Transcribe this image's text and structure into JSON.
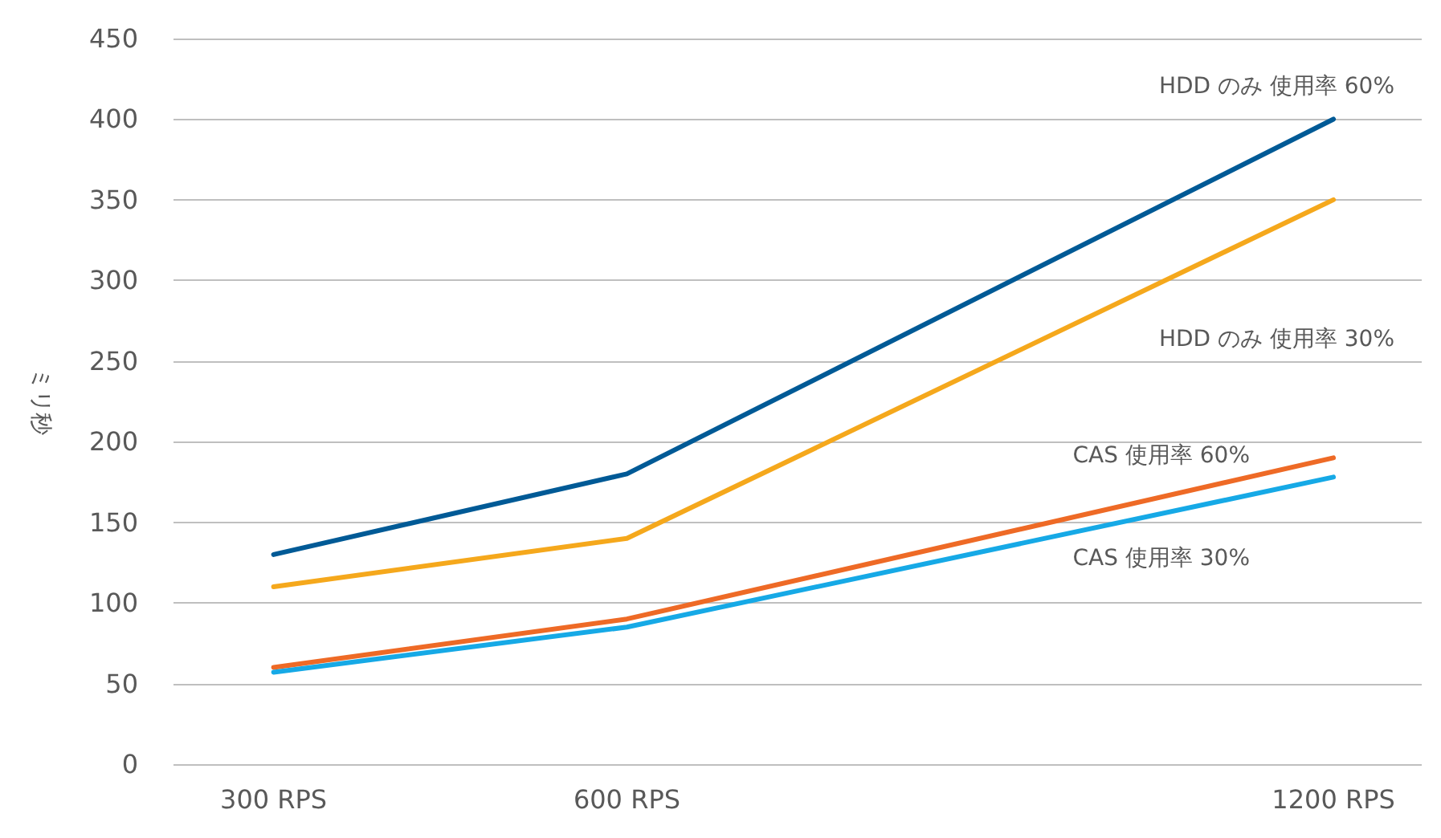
{
  "chart_data": {
    "type": "line",
    "ylabel": "ミリ秒",
    "x": [
      300,
      600,
      1200
    ],
    "xlim": [
      215,
      1275
    ],
    "xticks": [
      {
        "value": 300,
        "label": "300 RPS"
      },
      {
        "value": 600,
        "label": "600 RPS"
      },
      {
        "value": 1200,
        "label": "1200 RPS"
      }
    ],
    "ylim": [
      0,
      450
    ],
    "yticks": [
      0,
      50,
      100,
      150,
      200,
      250,
      300,
      350,
      400,
      450
    ],
    "grid": "y",
    "marker": "none",
    "line_style": "solid",
    "series": [
      {
        "name": "HDD のみ 使用率 60%",
        "color": "#005a96",
        "values": [
          130,
          180,
          400
        ]
      },
      {
        "name": "HDD のみ 使用率 30%",
        "color": "#f5a81c",
        "values": [
          110,
          140,
          350
        ]
      },
      {
        "name": "CAS 使用率 60%",
        "color": "#ee6a26",
        "values": [
          60,
          90,
          190
        ]
      },
      {
        "name": "CAS 使用率 30%",
        "color": "#16a9e6",
        "values": [
          57,
          85,
          178
        ]
      }
    ]
  }
}
